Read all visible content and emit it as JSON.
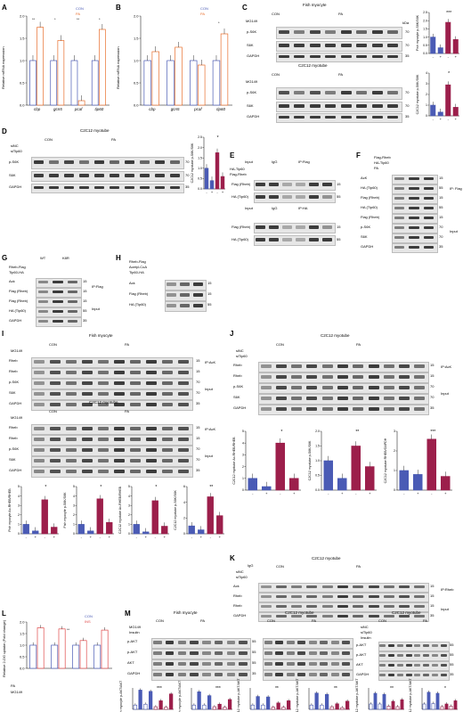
{
  "panel_labels": [
    "A",
    "B",
    "C",
    "D",
    "E",
    "F",
    "G",
    "H",
    "I",
    "J",
    "K",
    "L",
    "M",
    "N"
  ],
  "colors": {
    "con": "#4a5bb5",
    "pa": "#e86e2c",
    "pa_dark": "#9c1f4b",
    "ins": "#e04a4a"
  },
  "panelA": {
    "ylabel": "Relative mRNA expression",
    "legend": [
      "CON",
      "PA"
    ],
    "stars": [
      "**",
      "*",
      "**",
      "*"
    ],
    "chart_data": {
      "type": "bar",
      "categories": [
        "cbp",
        "gcn5",
        "pcaf",
        "tip60"
      ],
      "series": [
        {
          "name": "CON",
          "values": [
            1.0,
            1.0,
            1.0,
            1.0
          ]
        },
        {
          "name": "PA",
          "values": [
            1.75,
            1.45,
            0.1,
            1.7
          ]
        }
      ],
      "ylim": [
        0,
        2.0
      ],
      "yticks": [
        "0.0",
        "0.5",
        "1.0",
        "1.5",
        "2.0"
      ]
    }
  },
  "panelB": {
    "ylabel": "Relative mRNA expression",
    "legend": [
      "CON",
      "PA"
    ],
    "stars": [
      "*"
    ],
    "chart_data": {
      "type": "bar",
      "categories": [
        "cbp",
        "gcn5",
        "pcaf",
        "tip60"
      ],
      "series": [
        {
          "name": "CON",
          "values": [
            1.0,
            1.0,
            1.0,
            1.0
          ]
        },
        {
          "name": "PA",
          "values": [
            1.2,
            1.3,
            0.9,
            1.6
          ]
        }
      ],
      "ylim": [
        0,
        2.0
      ],
      "yticks": [
        "0.0",
        "0.5",
        "1.0",
        "1.5",
        "2.0"
      ]
    }
  },
  "panelC": {
    "title1": "Fish myocyte",
    "title2": "C2C12 myotube",
    "groups": [
      "CON",
      "PA"
    ],
    "mg149": "MG149",
    "rows": [
      "p-S6K",
      "S6K",
      "GAPDH"
    ],
    "sup": "T389",
    "kda": [
      "70",
      "70",
      "35"
    ],
    "kda_label": "kDa",
    "chart1_ylabel": "Fish myocyte p-S6K/S6K",
    "chart2_ylabel": "C2C12 myotube p-S6K/S6K",
    "chart1": {
      "values": [
        1.0,
        0.35,
        1.9,
        0.85
      ],
      "ylim": [
        0,
        2.5
      ],
      "yticks": [
        "0.0",
        "0.5",
        "1.0",
        "1.5",
        "2.0",
        "2.5"
      ],
      "stars": "***"
    },
    "chart2": {
      "values": [
        1.0,
        0.35,
        2.9,
        0.8
      ],
      "ylim": [
        0,
        4
      ],
      "yticks": [
        "0",
        "1",
        "2",
        "3",
        "4"
      ],
      "stars": "*"
    },
    "pm": [
      "-",
      "+",
      "-",
      "+"
    ]
  },
  "panelD": {
    "title": "C2C12 myotube",
    "groups": [
      "CON",
      "PA"
    ],
    "rows_left": [
      "siNC",
      "siTip60"
    ],
    "blots": [
      "p-S6K",
      "S6K",
      "GAPDH"
    ],
    "kda": [
      "70",
      "70",
      "35"
    ],
    "ylabel": "C2C12 myotube p-S6K/S6K",
    "xrow": "siTip60",
    "chart": {
      "values": [
        1.0,
        0.4,
        1.75,
        0.6
      ],
      "ylim": [
        0,
        2.5
      ],
      "stars": "*"
    }
  },
  "panelE": {
    "top": [
      "Input",
      "IgG",
      "IP:Flag"
    ],
    "rowsA": [
      "HA-Tip60",
      "Flag-Rheb"
    ],
    "blotsA": [
      "Flag (Rheb)",
      "HA (Tip60)"
    ],
    "kdaA": [
      "15",
      "55"
    ],
    "bottom": [
      "Input",
      "IgG",
      "IP:HA"
    ],
    "blotsB": [
      "Flag (Rheb)",
      "HA (Tip60)"
    ],
    "kdaB": [
      "15",
      "55"
    ]
  },
  "panelF": {
    "rows": [
      "Flag-Rheb",
      "HA-Tip60",
      "PA"
    ],
    "blots": [
      "AcK",
      "HA (Tip60)",
      "Flag (Rheb)",
      "HA (Tip60)",
      "Flag (Rheb)",
      "p-S6K",
      "S6K",
      "GAPDH"
    ],
    "kda": [
      "15",
      "55",
      "15",
      "55",
      "15",
      "70",
      "70",
      "35"
    ],
    "ip": "IP: Flag",
    "input": "Input"
  },
  "panelG": {
    "cols": [
      "WT",
      "K8R"
    ],
    "rows": [
      "Rheb-Flag",
      "Tip60-HA"
    ],
    "blots": [
      "Ack",
      "Flag (Rheb)",
      "Flag (Rheb)",
      "HA (Tip60)",
      "GAPDH"
    ],
    "kda": [
      "15",
      "15",
      "15",
      "55",
      "35"
    ],
    "ip": "IP:Flag",
    "input": "Input"
  },
  "panelH": {
    "rows": [
      "Rheb-Flag",
      "Acetyl-CoA",
      "Tip60-HA"
    ],
    "blots": [
      "Ack",
      "Flag (Rheb)",
      "HA (Tip60)"
    ],
    "kda": [
      "15",
      "15",
      "55"
    ]
  },
  "panelI": {
    "title1": "Fish myocyte",
    "title2": "C2C12 myotube",
    "groups": [
      "CON",
      "PA"
    ],
    "ig": "IgG",
    "mg149": "MG149",
    "blots": [
      "Rheb",
      "Rheb",
      "p-S6K",
      "S6K",
      "GAPDH"
    ],
    "kda": [
      "15",
      "15",
      "70",
      "70",
      "35"
    ],
    "ipack": "IP:AcK",
    "input": "Input",
    "charts": [
      {
        "ylabel": "Fish myocyte Ac-RHEB/RHEB",
        "values": [
          1.0,
          0.3,
          3.6,
          0.7
        ],
        "ylim": [
          0,
          5
        ],
        "stars": "*"
      },
      {
        "ylabel": "Fish myocyte p-S6K/S6K",
        "values": [
          1.0,
          0.3,
          3.7,
          1.2
        ],
        "ylim": [
          0,
          5
        ],
        "stars": "*"
      },
      {
        "ylabel": "C2C12 myotube Ac-RHEB/RHEB",
        "values": [
          1.0,
          0.2,
          3.5,
          0.8
        ],
        "ylim": [
          0,
          5
        ],
        "stars": "*"
      },
      {
        "ylabel": "C2C12 myotube p-S6K/S6K",
        "values": [
          1.0,
          0.5,
          4.7,
          2.3
        ],
        "ylim": [
          0,
          6
        ],
        "stars": "**"
      }
    ]
  },
  "panelJ": {
    "title": "C2C12 myotube",
    "groups": [
      "CON",
      "PA"
    ],
    "ig": "IgG",
    "rows": [
      "siNC",
      "siTip60"
    ],
    "blots": [
      "Rheb",
      "Rheb",
      "p-S6K",
      "S6K",
      "GAPDH"
    ],
    "kda": [
      "15",
      "15",
      "70",
      "70",
      "35"
    ],
    "ipack": "IP:AcK",
    "input": "Input",
    "charts": [
      {
        "ylabel": "C2C12 myotube Ac-RHEB/RHEB",
        "values": [
          1.0,
          0.3,
          4.0,
          1.0
        ],
        "ylim": [
          0,
          5
        ],
        "stars": "*"
      },
      {
        "ylabel": "C2C12 myotube p-S6K/S6K",
        "values": [
          1.0,
          0.4,
          1.5,
          0.8
        ],
        "ylim": [
          0,
          2
        ],
        "stars": "**"
      },
      {
        "ylabel": "C2C12 myotube RHEB/GAPDH",
        "values": [
          1.0,
          0.8,
          2.6,
          0.7
        ],
        "ylim": [
          0,
          3
        ],
        "stars": "***"
      }
    ]
  },
  "panelK": {
    "title": "C2C12 myotube",
    "groups": [
      "CON",
      "PA"
    ],
    "ig": "IgG",
    "rows": [
      "siNC",
      "siTip60"
    ],
    "blots": [
      "Ack",
      "Rheb",
      "Rheb",
      "GAPDH"
    ],
    "kda": [
      "15",
      "15",
      "15",
      "35"
    ],
    "iprheb": "IP:Rheb",
    "input": "Input"
  },
  "panelL": {
    "ylabel": "Relative 2-DG uptake (Fold change)",
    "legend": [
      "CON",
      "INS"
    ],
    "stars": "**",
    "rows": [
      "PA",
      "MG149"
    ],
    "chart": {
      "series": [
        {
          "name": "CON",
          "values": [
            1.0,
            1.0,
            1.0,
            1.0
          ]
        },
        {
          "name": "INS",
          "values": [
            1.75,
            1.7,
            1.2,
            1.65
          ]
        }
      ],
      "ylim": [
        0,
        2.0
      ],
      "yticks": [
        "0.0",
        "0.5",
        "1.0",
        "1.5",
        "2.0"
      ]
    }
  },
  "panelM": {
    "title1": "Fish myocyte",
    "title2": "C2C12 myotube",
    "groups": [
      "CON",
      "PA"
    ],
    "rows": [
      "MG149",
      "Insulin"
    ],
    "blots": [
      "p-AKT",
      "p-AKT",
      "AKT",
      "GAPDH"
    ],
    "sups": [
      "S473",
      "T308",
      "",
      ""
    ],
    "kda": [
      "55",
      "55",
      "55",
      "35"
    ],
    "charts": [
      {
        "ylabel": "Fish myocyte p-AKT/AKT",
        "values": [
          1.0,
          4.5,
          1.2,
          4.2,
          0.6,
          2.0,
          0.5,
          3.6
        ],
        "stars": "***"
      },
      {
        "ylabel": "Fish myocyte p-AKT/AKT",
        "values": [
          1.0,
          4.1,
          1.0,
          3.2,
          0.6,
          1.2,
          0.5,
          2.3
        ],
        "stars": "***"
      },
      {
        "ylabel": "C2C12 myotube p-AKT/AKT",
        "values": [
          1.0,
          3.0,
          1.0,
          2.9,
          0.5,
          1.5,
          0.5,
          2.0
        ],
        "stars": "**"
      },
      {
        "ylabel": "C2C12 myotube p-AKT/AKT",
        "values": [
          1.0,
          3.8,
          1.0,
          3.5,
          0.6,
          1.3,
          0.4,
          1.9
        ],
        "stars": "**"
      }
    ]
  },
  "panelN": {
    "title": "C2C12 myotube",
    "groups": [
      "CON",
      "PA"
    ],
    "rows": [
      "siNC",
      "siTip60",
      "Insulin"
    ],
    "blots": [
      "p-AKT",
      "p-AKT",
      "AKT",
      "GAPDH"
    ],
    "sups": [
      "S473",
      "T308",
      "",
      ""
    ],
    "kda": [
      "55",
      "55",
      "55",
      "35"
    ],
    "charts": [
      {
        "ylabel": "C2C12 myotube p-AKT/AKT",
        "values": [
          1.0,
          3.0,
          1.0,
          2.8,
          0.6,
          1.5,
          0.5,
          1.8
        ],
        "stars": "**"
      },
      {
        "ylabel": "C2C12 myotube p-AKT/AKT",
        "values": [
          1.0,
          3.2,
          1.1,
          3.0,
          0.5,
          1.0,
          0.6,
          1.6
        ],
        "stars": "*"
      }
    ]
  },
  "legend_con_pa": [
    "CON",
    "PA"
  ],
  "x_insulin": "Insulin",
  "x_mg149": "MG149",
  "x_sitip60": "siTip60"
}
